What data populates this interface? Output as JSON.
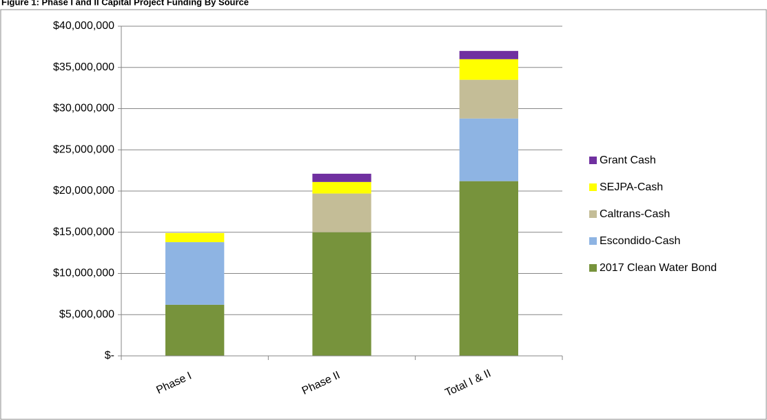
{
  "chart_data": {
    "type": "stacked-bar",
    "title": "Figure 1: Phase I and II Capital Project Funding By Source",
    "categories": [
      "Phase I",
      "Phase II",
      "Total I & II"
    ],
    "series": [
      {
        "name": "2017 Clean Water Bond",
        "color": "#77933c",
        "values": [
          6200000,
          15000000,
          21200000
        ]
      },
      {
        "name": "Escondido-Cash",
        "color": "#8eb4e3",
        "values": [
          7600000,
          0,
          7600000
        ]
      },
      {
        "name": "Caltrans-Cash",
        "color": "#c4bd97",
        "values": [
          0,
          4700000,
          4700000
        ]
      },
      {
        "name": "SEJPA-Cash",
        "color": "#ffff00",
        "values": [
          1100000,
          1400000,
          2500000
        ]
      },
      {
        "name": "Grant Cash",
        "color": "#7030a0",
        "values": [
          0,
          1000000,
          1000000
        ]
      }
    ],
    "ylim": [
      0,
      40000000
    ],
    "yticks": [
      {
        "value": 0,
        "label": "$-"
      },
      {
        "value": 5000000,
        "label": "$5,000,000"
      },
      {
        "value": 10000000,
        "label": "$10,000,000"
      },
      {
        "value": 15000000,
        "label": "$15,000,000"
      },
      {
        "value": 20000000,
        "label": "$20,000,000"
      },
      {
        "value": 25000000,
        "label": "$25,000,000"
      },
      {
        "value": 30000000,
        "label": "$30,000,000"
      },
      {
        "value": 35000000,
        "label": "$35,000,000"
      },
      {
        "value": 40000000,
        "label": "$40,000,000"
      }
    ],
    "grid": true,
    "legend": "right"
  }
}
